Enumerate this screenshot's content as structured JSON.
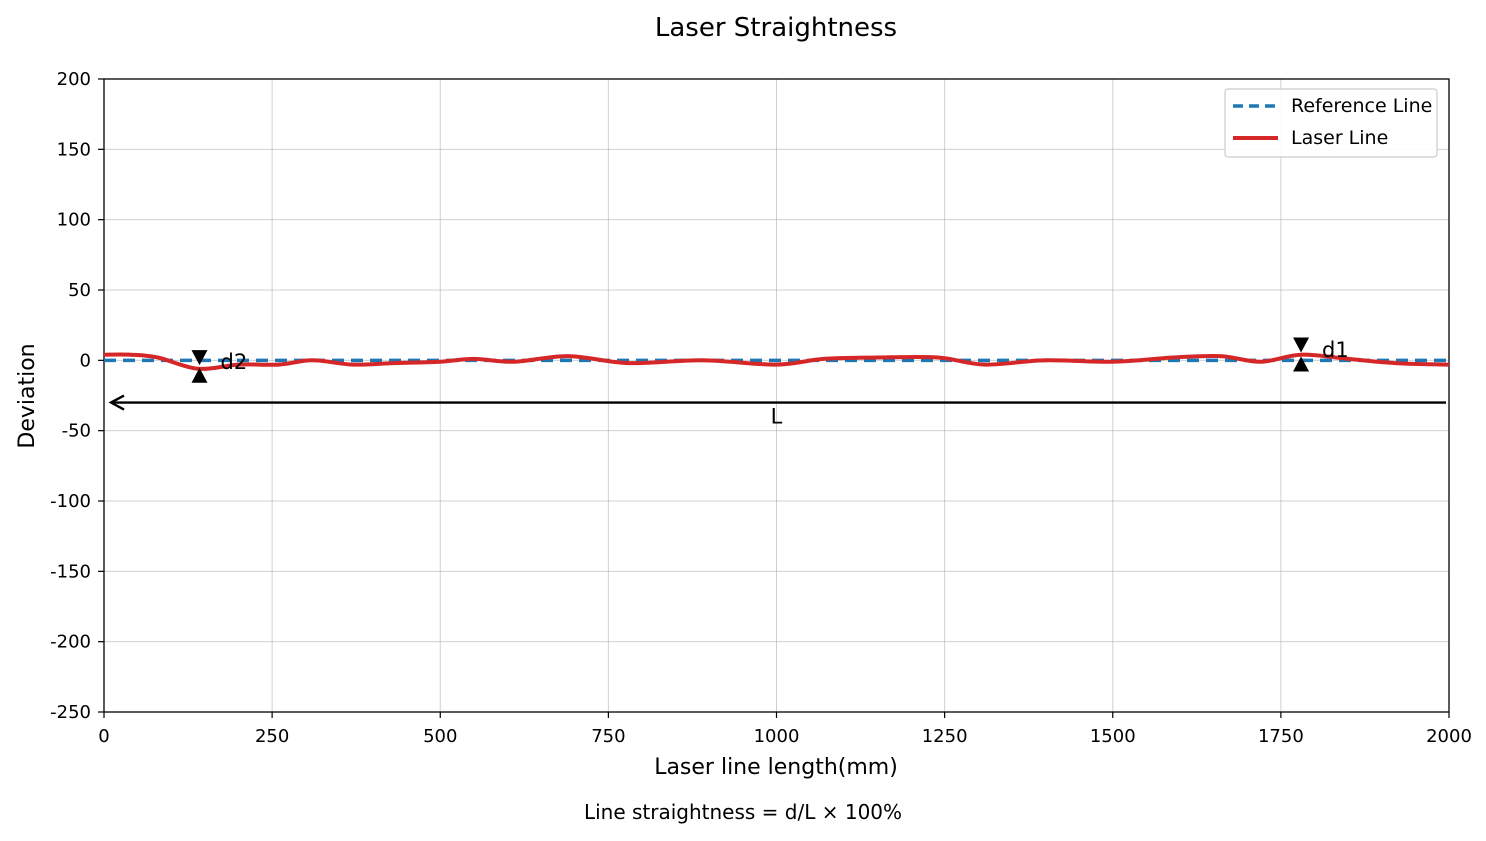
{
  "chart_data": {
    "type": "line",
    "title": "Laser Straightness",
    "xlabel": "Laser line length(mm)",
    "ylabel": "Deviation",
    "xlim": [
      0,
      2000
    ],
    "ylim": [
      -250,
      200
    ],
    "x_ticks": [
      "0",
      "250",
      "500",
      "750",
      "1000",
      "1250",
      "1500",
      "1750",
      "2000"
    ],
    "y_ticks": [
      "200",
      "150",
      "100",
      "50",
      "0",
      "-50",
      "-100",
      "-150",
      "-200",
      "-250"
    ],
    "grid": true,
    "legend_position": "top-right",
    "series": [
      {
        "name": "Reference Line",
        "style": "dashed",
        "color": "#1f77b4",
        "x": [
          0,
          2000
        ],
        "y": [
          0,
          0
        ]
      },
      {
        "name": "Laser Line",
        "style": "solid",
        "color": "#d62728",
        "x": [
          0,
          40,
          80,
          140,
          200,
          260,
          310,
          370,
          430,
          500,
          550,
          610,
          690,
          780,
          890,
          1000,
          1070,
          1150,
          1240,
          1310,
          1400,
          1500,
          1590,
          1660,
          1720,
          1780,
          1850,
          1920,
          2000
        ],
        "y": [
          4,
          4,
          2,
          -6,
          -3,
          -3,
          0,
          -3,
          -2,
          -1,
          1,
          -1,
          3,
          -2,
          0,
          -3,
          1,
          2,
          2,
          -3,
          0,
          -1,
          2,
          3,
          -1,
          4,
          1,
          -2,
          -3
        ]
      }
    ],
    "annotations": {
      "d1": {
        "label": "d1",
        "x": 1780,
        "y_top": 12,
        "y_bottom": -3
      },
      "d2": {
        "label": "d2",
        "x": 142,
        "y_top": 3,
        "y_bottom": -11
      },
      "L": {
        "label": "L",
        "x_start": 2000,
        "x_end": 0,
        "y": -30
      }
    },
    "footer": "Line straightness = d/L × 100%"
  }
}
